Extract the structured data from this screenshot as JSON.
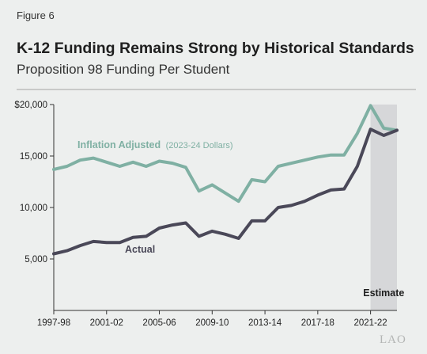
{
  "figure_label": "Figure 6",
  "title": "K-12 Funding Remains Strong by Historical Standards",
  "subtitle": "Proposition 98 Funding Per Student",
  "logo": "LAO",
  "colors": {
    "inflation": "#7fb0a3",
    "actual": "#4a4858",
    "estimate_band": "#d6d7d9",
    "axis": "#333333"
  },
  "chart_data": {
    "type": "line",
    "x": [
      "1997-98",
      "1998-99",
      "1999-00",
      "2000-01",
      "2001-02",
      "2002-03",
      "2003-04",
      "2004-05",
      "2005-06",
      "2006-07",
      "2007-08",
      "2008-09",
      "2009-10",
      "2010-11",
      "2011-12",
      "2012-13",
      "2013-14",
      "2014-15",
      "2015-16",
      "2016-17",
      "2017-18",
      "2018-19",
      "2019-20",
      "2020-21",
      "2021-22",
      "2022-23",
      "2023-24"
    ],
    "xticks": [
      "1997-98",
      "2001-02",
      "2005-06",
      "2009-10",
      "2013-14",
      "2017-18",
      "2021-22"
    ],
    "yticks": [
      5000,
      10000,
      15000,
      20000
    ],
    "ytick_labels": [
      "5,000",
      "10,000",
      "15,000",
      "$20,000"
    ],
    "ylim": [
      0,
      20000
    ],
    "series": [
      {
        "name": "Inflation Adjusted",
        "name_suffix": "(2023-24 Dollars)",
        "values": [
          13700,
          14000,
          14600,
          14800,
          14400,
          14000,
          14400,
          14000,
          14500,
          14300,
          13900,
          11600,
          12200,
          11400,
          10600,
          12700,
          12500,
          14000,
          14300,
          14600,
          14900,
          15100,
          15100,
          17200,
          19900,
          17700,
          17500
        ]
      },
      {
        "name": "Actual",
        "values": [
          5500,
          5800,
          6300,
          6700,
          6600,
          6600,
          7100,
          7200,
          8000,
          8300,
          8500,
          7200,
          7700,
          7400,
          7000,
          8700,
          8700,
          10000,
          10200,
          10600,
          11200,
          11700,
          11800,
          14000,
          17600,
          17000,
          17500
        ]
      }
    ],
    "estimate": {
      "label": "Estimate",
      "start": "2021-22",
      "end": "2023-24"
    }
  }
}
